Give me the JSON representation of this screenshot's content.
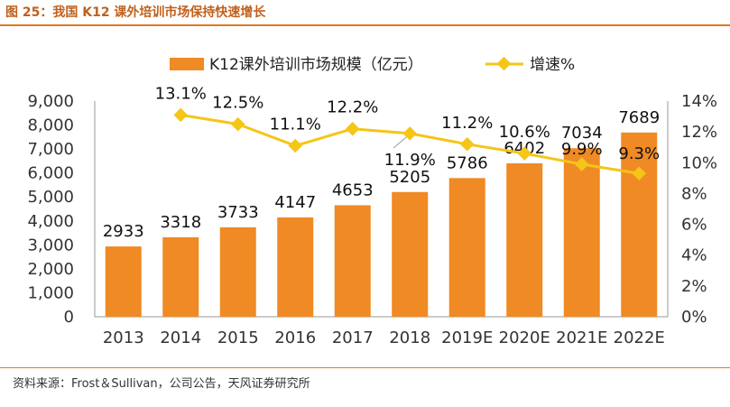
{
  "figure_title": "图 25：我国 K12 课外培训市场保持快速增长",
  "source_note": "资料来源：Frost＆Sullivan，公司公告，天风证券研究所",
  "colors": {
    "bar": "#f08a24",
    "line": "#f5c518",
    "accent": "#e07b24"
  },
  "chart_data": {
    "type": "bar",
    "categories": [
      "2013",
      "2014",
      "2015",
      "2016",
      "2017",
      "2018",
      "2019E",
      "2020E",
      "2021E",
      "2022E"
    ],
    "series": [
      {
        "name": "K12课外培训市场规模（亿元）",
        "type": "bar",
        "axis": "left",
        "values": [
          2933,
          3318,
          3733,
          4147,
          4653,
          5205,
          5786,
          6402,
          7034,
          7689
        ],
        "labels": [
          "2933",
          "3318",
          "3733",
          "4147",
          "4653",
          "5205",
          "5786",
          "6402",
          "7034",
          "7689"
        ]
      },
      {
        "name": "增速%",
        "type": "line",
        "axis": "right",
        "values": [
          null,
          13.1,
          12.5,
          11.1,
          12.2,
          11.9,
          11.2,
          10.6,
          9.9,
          9.3
        ],
        "labels": [
          "",
          "13.1%",
          "12.5%",
          "11.1%",
          "12.2%",
          "11.9%",
          "11.2%",
          "10.6%",
          "9.9%",
          "9.3%"
        ]
      }
    ],
    "y_left": {
      "min": 0,
      "max": 9000,
      "step": 1000,
      "ticks": [
        "0",
        "1,000",
        "2,000",
        "3,000",
        "4,000",
        "5,000",
        "6,000",
        "7,000",
        "8,000",
        "9,000"
      ]
    },
    "y_right": {
      "min": 0,
      "max": 14,
      "step": 2,
      "ticks": [
        "0%",
        "2%",
        "4%",
        "6%",
        "8%",
        "10%",
        "12%",
        "14%"
      ]
    },
    "legend_position": "top-center",
    "grid": false
  }
}
